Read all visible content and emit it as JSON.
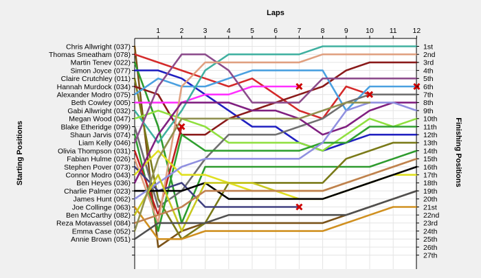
{
  "chart_data": {
    "type": "line",
    "x_title": "Laps",
    "left_title": "Starting Positions",
    "right_title": "Finishing Positions",
    "laps": [
      1,
      2,
      3,
      4,
      5,
      6,
      7,
      8,
      9,
      10,
      11,
      12
    ],
    "position_labels": [
      "1st",
      "2nd",
      "3rd",
      "4th",
      "5th",
      "6th",
      "7th",
      "8th",
      "9th",
      "10th",
      "11th",
      "12th",
      "13th",
      "14th",
      "15th",
      "16th",
      "17th",
      "18th",
      "19th",
      "20th",
      "21st",
      "22nd",
      "23rd",
      "24th",
      "25th",
      "26th",
      "27th"
    ],
    "y_range": [
      1,
      27
    ],
    "x_range": [
      0,
      12
    ],
    "grid": true,
    "retired_marker": "red-x",
    "series": [
      {
        "name": "Chris Allwright (037)",
        "color": "#7a5218",
        "start": 1,
        "positions": [
          26,
          24,
          23,
          23,
          23,
          23,
          23,
          23,
          22,
          21,
          20,
          19
        ],
        "retired": false
      },
      {
        "name": "Thomas Smeatham (078)",
        "color": "#d42a2a",
        "start": 2,
        "positions": [
          3,
          4,
          5,
          6,
          5,
          7,
          9,
          10,
          6,
          7,
          null,
          null
        ],
        "retired": true
      },
      {
        "name": "Martin Tenev (022)",
        "color": "#2e9b2e",
        "start": 3,
        "positions": [
          11,
          23,
          16,
          16,
          16,
          16,
          16,
          16,
          16,
          16,
          15,
          14
        ],
        "retired": false
      },
      {
        "name": "Simon Joyce (077)",
        "color": "#2020c0",
        "start": 4,
        "positions": [
          4,
          5,
          7,
          9,
          11,
          11,
          13,
          14,
          13,
          12,
          12,
          12
        ],
        "retired": false
      },
      {
        "name": "Claire Crutchley (011)",
        "color": "#7a7a18",
        "start": 5,
        "positions": [
          20,
          25,
          23,
          18,
          18,
          18,
          18,
          18,
          15,
          14,
          13,
          13
        ],
        "retired": false
      },
      {
        "name": "Hannah Murdock (034)",
        "color": "#8a1a1a",
        "start": 6,
        "positions": [
          7,
          12,
          12,
          10,
          9,
          8,
          7,
          6,
          4,
          3,
          3,
          3
        ],
        "retired": false
      },
      {
        "name": "Alexander Modro (075)",
        "color": "#4aa0e0",
        "start": 7,
        "positions": [
          5,
          6,
          6,
          5,
          4,
          4,
          4,
          4,
          9,
          6,
          6,
          6
        ],
        "retired": true
      },
      {
        "name": "Beth Cowley (005)",
        "color": "#ff30ff",
        "start": 8,
        "positions": [
          8,
          8,
          7,
          7,
          6,
          6,
          6,
          null,
          null,
          null,
          null,
          null
        ],
        "retired": true
      },
      {
        "name": "Gabi Allwright (032)",
        "color": "#40b0a0",
        "start": 9,
        "positions": [
          13,
          9,
          4,
          2,
          2,
          2,
          2,
          1,
          1,
          1,
          1,
          1
        ],
        "retired": false
      },
      {
        "name": "Megan Wood (047)",
        "color": "#90e040",
        "start": 10,
        "positions": [
          9,
          10,
          11,
          13,
          13,
          13,
          13,
          14,
          12,
          10,
          11,
          10
        ],
        "retired": false
      },
      {
        "name": "Blake Etheridge (099)",
        "color": "#707070",
        "start": 11,
        "positions": [
          21,
          19,
          15,
          12,
          12,
          12,
          11,
          10,
          8,
          7,
          7,
          7
        ],
        "retired": false
      },
      {
        "name": "Shaun Jarvis (074)",
        "color": "#30a030",
        "start": 12,
        "positions": [
          24,
          12,
          14,
          14,
          14,
          14,
          14,
          13,
          13,
          11,
          11,
          11
        ],
        "retired": false
      },
      {
        "name": "Liam Kelly (046)",
        "color": "#8c4c8c",
        "start": 13,
        "positions": [
          6,
          2,
          2,
          4,
          8,
          8,
          8,
          5,
          5,
          5,
          5,
          5
        ],
        "retired": false
      },
      {
        "name": "Olivia Thompson (031)",
        "color": "#c02020",
        "start": 14,
        "positions": [
          22,
          11,
          null,
          null,
          null,
          null,
          null,
          null,
          null,
          null,
          null,
          null
        ],
        "retired": true
      },
      {
        "name": "Fabian Hulme (026)",
        "color": "#e0a080",
        "start": 15,
        "positions": [
          23,
          6,
          3,
          3,
          3,
          3,
          3,
          2,
          2,
          2,
          2,
          2
        ],
        "retired": false
      },
      {
        "name": "Stephen Pover (073)",
        "color": "#404080",
        "start": 16,
        "positions": [
          19,
          18,
          21,
          21,
          21,
          21,
          21,
          null,
          null,
          null,
          null,
          null
        ],
        "retired": true
      },
      {
        "name": "Connor Modro (043)",
        "color": "#e0e020",
        "start": 17,
        "positions": [
          14,
          17,
          17,
          18,
          19,
          19,
          20,
          20,
          19,
          18,
          17,
          17
        ],
        "retired": false
      },
      {
        "name": "Ben Heyes (036)",
        "color": "#802080",
        "start": 18,
        "positions": [
          12,
          8,
          8,
          8,
          9,
          9,
          10,
          12,
          11,
          9,
          8,
          8
        ],
        "retired": false
      },
      {
        "name": "Charlie Palmer (023)",
        "color": "#000000",
        "start": 19,
        "positions": [
          19,
          19,
          18,
          20,
          20,
          20,
          20,
          20,
          19,
          18,
          17,
          16
        ],
        "retired": false
      },
      {
        "name": "James Hunt (062)",
        "color": "#9090e0",
        "start": 20,
        "positions": [
          18,
          16,
          15,
          15,
          15,
          15,
          15,
          13,
          9,
          8,
          8,
          9
        ],
        "retired": false
      },
      {
        "name": "Joe Collinge (063)",
        "color": "#d09020",
        "start": 21,
        "positions": [
          25,
          25,
          24,
          24,
          24,
          24,
          24,
          24,
          23,
          22,
          21,
          21
        ],
        "retired": false
      },
      {
        "name": "Ben McCarthy (082)",
        "color": "#c8c820",
        "start": 22,
        "positions": [
          17,
          24,
          18,
          18,
          18,
          19,
          19,
          19,
          18,
          17,
          16,
          15
        ],
        "retired": false
      },
      {
        "name": "Reza Motavassel (084)",
        "color": "#c08050",
        "start": 23,
        "positions": [
          22,
          21,
          19,
          19,
          19,
          19,
          19,
          19,
          18,
          17,
          16,
          15
        ],
        "retired": false
      },
      {
        "name": "Emma Case (052)",
        "color": "#909050",
        "start": 24,
        "positions": [
          15,
          10,
          10,
          10,
          10,
          10,
          10,
          9,
          8,
          8,
          null,
          null
        ],
        "retired": false
      },
      {
        "name": "Annie Brown (051)",
        "color": "#505050",
        "start": 25,
        "positions": [
          23,
          23,
          23,
          22,
          22,
          22,
          22,
          22,
          22,
          21,
          20,
          19
        ],
        "retired": false
      }
    ]
  }
}
